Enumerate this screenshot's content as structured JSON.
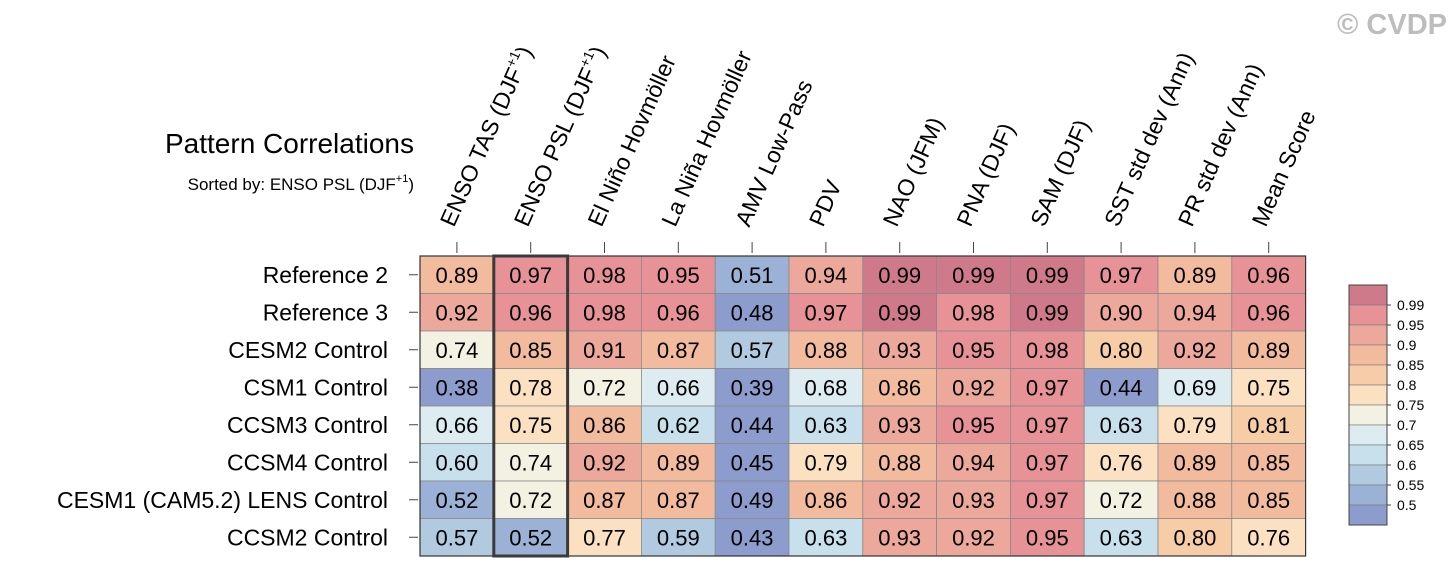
{
  "watermark": "© CVDP",
  "chart_data": {
    "type": "heatmap",
    "title": "Pattern Correlations",
    "subtitle": {
      "prefix": "Sorted by: ENSO PSL (DJF",
      "sup": "+1",
      "suffix": ")"
    },
    "columns": [
      {
        "label": "ENSO TAS (DJF",
        "sup": "+1",
        "suffix": ")"
      },
      {
        "label": "ENSO PSL (DJF",
        "sup": "+1",
        "suffix": ")"
      },
      {
        "label": "El Niño Hovmöller"
      },
      {
        "label": "La Niña Hovmöller"
      },
      {
        "label": "AMV Low-Pass"
      },
      {
        "label": "PDV"
      },
      {
        "label": "NAO (JFM)"
      },
      {
        "label": "PNA (DJF)"
      },
      {
        "label": "SAM (DJF)"
      },
      {
        "label": "SST std dev (Ann)"
      },
      {
        "label": "PR std dev (Ann)"
      },
      {
        "label": "Mean Score"
      }
    ],
    "rows": [
      "Reference 2",
      "Reference 3",
      "CESM2 Control",
      "CSM1 Control",
      "CCSM3 Control",
      "CCSM4 Control",
      "CESM1 (CAM5.2) LENS Control",
      "CCSM2 Control"
    ],
    "values": [
      [
        "0.89",
        "0.97",
        "0.98",
        "0.95",
        "0.51",
        "0.94",
        "0.99",
        "0.99",
        "0.99",
        "0.97",
        "0.89",
        "0.96"
      ],
      [
        "0.92",
        "0.96",
        "0.98",
        "0.96",
        "0.48",
        "0.97",
        "0.99",
        "0.98",
        "0.99",
        "0.90",
        "0.94",
        "0.96"
      ],
      [
        "0.74",
        "0.85",
        "0.91",
        "0.87",
        "0.57",
        "0.88",
        "0.93",
        "0.95",
        "0.98",
        "0.80",
        "0.92",
        "0.89"
      ],
      [
        "0.38",
        "0.78",
        "0.72",
        "0.66",
        "0.39",
        "0.68",
        "0.86",
        "0.92",
        "0.97",
        "0.44",
        "0.69",
        "0.75"
      ],
      [
        "0.66",
        "0.75",
        "0.86",
        "0.62",
        "0.44",
        "0.63",
        "0.93",
        "0.95",
        "0.97",
        "0.63",
        "0.79",
        "0.81"
      ],
      [
        "0.60",
        "0.74",
        "0.92",
        "0.89",
        "0.45",
        "0.79",
        "0.88",
        "0.94",
        "0.97",
        "0.76",
        "0.89",
        "0.85"
      ],
      [
        "0.52",
        "0.72",
        "0.87",
        "0.87",
        "0.49",
        "0.86",
        "0.92",
        "0.93",
        "0.97",
        "0.72",
        "0.88",
        "0.85"
      ],
      [
        "0.57",
        "0.52",
        "0.77",
        "0.59",
        "0.43",
        "0.63",
        "0.93",
        "0.92",
        "0.95",
        "0.63",
        "0.80",
        "0.76"
      ]
    ],
    "sorted_column": 1,
    "colorbar": {
      "labels": [
        "0.99",
        "0.95",
        "0.9",
        "0.85",
        "0.8",
        "0.75",
        "0.7",
        "0.65",
        "0.6",
        "0.55",
        "0.5"
      ],
      "colors": [
        "#cf7a8a",
        "#e69296",
        "#eca89a",
        "#f3bb9d",
        "#f7cda7",
        "#fbe1c1",
        "#f3f2e2",
        "#dcecf0",
        "#c8e0ec",
        "#b1cae0",
        "#9cb1d6",
        "#8c9dcd"
      ]
    }
  }
}
